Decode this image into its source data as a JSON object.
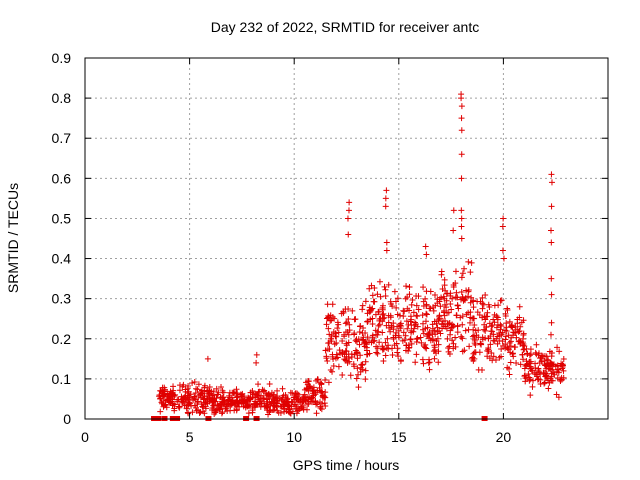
{
  "chart_data": {
    "type": "scatter",
    "title": "Day 232 of 2022, SRMTID for receiver antc",
    "xlabel": "GPS time / hours",
    "ylabel": "SRMTID / TECUs",
    "xlim": [
      0,
      25
    ],
    "ylim": [
      0,
      0.9
    ],
    "x_ticks": [
      0,
      5,
      10,
      15,
      20
    ],
    "x_tick_labels": [
      "0",
      "5",
      "10",
      "15",
      "20"
    ],
    "y_ticks": [
      0,
      0.1,
      0.2,
      0.3,
      0.4,
      0.5,
      0.6,
      0.7,
      0.8,
      0.9
    ],
    "y_tick_labels": [
      "0",
      "0.1",
      "0.2",
      "0.3",
      "0.4",
      "0.5",
      "0.6",
      "0.7",
      "0.8",
      "0.9"
    ],
    "grid": true,
    "marker": "+",
    "series_color": "#e00000",
    "segments": [
      {
        "x0": 3.5,
        "x1": 4.5,
        "base": 0.05,
        "spread": 0.02
      },
      {
        "x0": 4.5,
        "x1": 6.0,
        "base": 0.05,
        "spread": 0.025
      },
      {
        "x0": 6.0,
        "x1": 8.0,
        "base": 0.045,
        "spread": 0.02
      },
      {
        "x0": 8.0,
        "x1": 9.0,
        "base": 0.045,
        "spread": 0.025
      },
      {
        "x0": 9.0,
        "x1": 10.5,
        "base": 0.04,
        "spread": 0.02
      },
      {
        "x0": 10.5,
        "x1": 11.5,
        "base": 0.06,
        "spread": 0.03
      },
      {
        "x0": 11.5,
        "x1": 12.5,
        "base": 0.18,
        "spread": 0.07
      },
      {
        "x0": 12.5,
        "x1": 13.5,
        "base": 0.17,
        "spread": 0.07
      },
      {
        "x0": 13.5,
        "x1": 15.0,
        "base": 0.24,
        "spread": 0.07
      },
      {
        "x0": 15.0,
        "x1": 17.0,
        "base": 0.23,
        "spread": 0.07
      },
      {
        "x0": 17.0,
        "x1": 18.5,
        "base": 0.27,
        "spread": 0.07
      },
      {
        "x0": 18.5,
        "x1": 20.0,
        "base": 0.22,
        "spread": 0.07
      },
      {
        "x0": 20.0,
        "x1": 21.0,
        "base": 0.2,
        "spread": 0.06
      },
      {
        "x0": 21.0,
        "x1": 22.0,
        "base": 0.13,
        "spread": 0.04
      },
      {
        "x0": 22.0,
        "x1": 22.9,
        "base": 0.12,
        "spread": 0.035
      }
    ],
    "spikes": [
      {
        "x": 5.9,
        "values": [
          0.15
        ]
      },
      {
        "x": 8.2,
        "values": [
          0.16,
          0.14
        ]
      },
      {
        "x": 12.6,
        "values": [
          0.54,
          0.52,
          0.5,
          0.46
        ]
      },
      {
        "x": 14.4,
        "values": [
          0.57,
          0.55,
          0.53,
          0.44,
          0.42
        ]
      },
      {
        "x": 16.3,
        "values": [
          0.43,
          0.41
        ]
      },
      {
        "x": 17.6,
        "values": [
          0.52,
          0.47
        ]
      },
      {
        "x": 18.0,
        "values": [
          0.81,
          0.8,
          0.78,
          0.75,
          0.72,
          0.66,
          0.6,
          0.52,
          0.5,
          0.48,
          0.45
        ]
      },
      {
        "x": 20.0,
        "values": [
          0.5,
          0.48,
          0.42,
          0.4
        ]
      },
      {
        "x": 22.3,
        "values": [
          0.61,
          0.59,
          0.53,
          0.47,
          0.44,
          0.35,
          0.31,
          0.24,
          0.21
        ]
      }
    ],
    "zero_points": [
      3.3,
      3.5,
      3.8,
      4.2,
      4.4,
      5.9,
      7.7,
      8.2,
      19.1
    ]
  }
}
